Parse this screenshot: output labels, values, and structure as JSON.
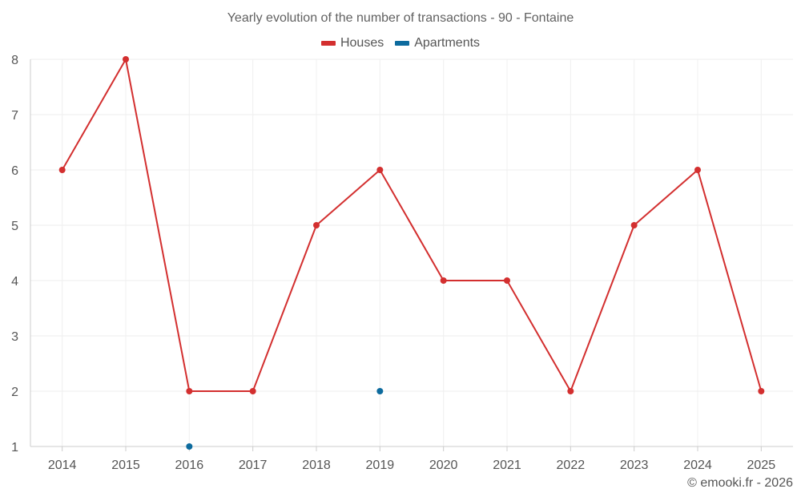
{
  "chart_data": {
    "type": "line",
    "title": "Yearly evolution of the number of transactions - 90 - Fontaine",
    "categories": [
      "2014",
      "2015",
      "2016",
      "2017",
      "2018",
      "2019",
      "2020",
      "2021",
      "2022",
      "2023",
      "2024",
      "2025"
    ],
    "ylim": [
      1,
      8
    ],
    "yticks": [
      1,
      2,
      3,
      4,
      5,
      6,
      7,
      8
    ],
    "grid": true,
    "legend_position": "top-center",
    "series": [
      {
        "name": "Houses",
        "color": "#d32f2f",
        "values": [
          6,
          8,
          2,
          2,
          5,
          6,
          4,
          4,
          2,
          5,
          6,
          2
        ]
      },
      {
        "name": "Apartments",
        "color": "#0d6b9e",
        "values": [
          null,
          null,
          1,
          null,
          null,
          2,
          null,
          null,
          null,
          null,
          null,
          null
        ]
      }
    ]
  },
  "credit": "© emooki.fr - 2026"
}
